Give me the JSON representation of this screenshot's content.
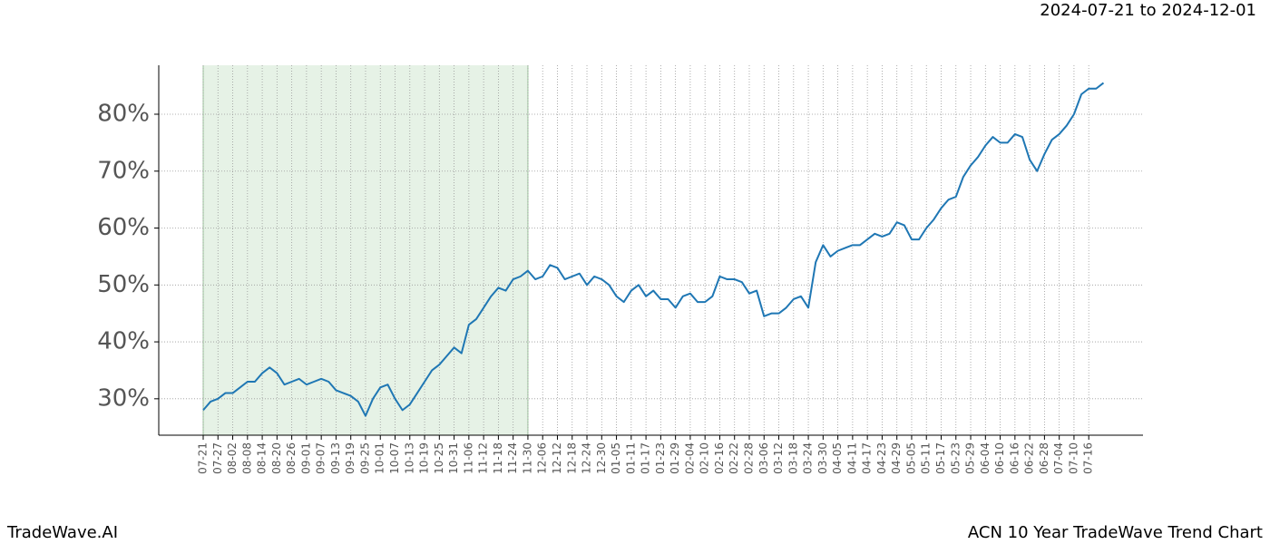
{
  "chart_data": {
    "type": "line",
    "title": "2024-07-21 to 2024-12-01",
    "footer_left": "TradeWave.AI",
    "footer_right": "ACN 10 Year TradeWave Trend Chart",
    "categories": [
      "07-21",
      null,
      "07-27",
      null,
      "08-02",
      null,
      "08-08",
      null,
      "08-14",
      null,
      "08-20",
      null,
      "08-26",
      null,
      "09-01",
      null,
      "09-07",
      null,
      "09-13",
      null,
      "09-19",
      null,
      "09-25",
      null,
      "10-01",
      null,
      "10-07",
      null,
      "10-13",
      null,
      "10-19",
      null,
      "10-25",
      null,
      "10-31",
      null,
      "11-06",
      null,
      "11-12",
      null,
      "11-18",
      null,
      "11-24",
      null,
      "11-30",
      null,
      "12-06",
      null,
      "12-12",
      null,
      "12-18",
      null,
      "12-24",
      null,
      "12-30",
      null,
      "01-05",
      null,
      "01-11",
      null,
      "01-17",
      null,
      "01-23",
      null,
      "01-29",
      null,
      "02-04",
      null,
      "02-10",
      null,
      "02-16",
      null,
      "02-22",
      null,
      "02-28",
      null,
      "03-06",
      null,
      "03-12",
      null,
      "03-18",
      null,
      "03-24",
      null,
      "03-30",
      null,
      "04-05",
      null,
      "04-11",
      null,
      "04-17",
      null,
      "04-23",
      null,
      "04-29",
      null,
      "05-05",
      null,
      "05-11",
      null,
      "05-17",
      null,
      "05-23",
      null,
      "05-29",
      null,
      "06-04",
      null,
      "06-10",
      null,
      "06-16",
      null,
      "06-22",
      null,
      "06-28",
      null,
      "07-04",
      null,
      "07-10",
      null,
      "07-16",
      null,
      null
    ],
    "series": [
      {
        "name": "ACN",
        "color": "#1f77b4",
        "values": [
          28,
          29.5,
          30,
          31,
          31,
          32,
          33,
          33,
          34.5,
          35.5,
          34.5,
          32.5,
          33,
          33.5,
          32.5,
          33,
          33.5,
          33,
          31.5,
          31,
          30.5,
          29.5,
          27,
          30,
          32,
          32.5,
          30,
          28,
          29,
          31,
          33,
          35,
          36,
          37.5,
          39,
          38,
          43,
          44,
          46,
          48,
          49.5,
          49,
          51,
          51.5,
          52.5,
          51,
          51.5,
          53.5,
          53,
          51,
          51.5,
          52,
          50,
          51.5,
          51,
          50,
          48,
          47,
          49,
          50,
          48,
          49,
          47.5,
          47.5,
          46,
          48,
          48.5,
          47,
          47,
          48,
          51.5,
          51,
          51,
          50.5,
          48.5,
          49,
          44.5,
          45,
          45,
          46,
          47.5,
          48,
          46,
          54,
          57,
          55,
          56,
          56.5,
          57,
          57,
          58,
          59,
          58.5,
          59,
          61,
          60.5,
          58,
          58,
          60,
          61.5,
          63.5,
          65,
          65.5,
          69,
          71,
          72.5,
          74.5,
          76,
          75,
          75,
          76.5,
          76,
          72,
          70,
          73,
          75.5,
          76.5,
          78,
          80,
          83.5,
          84.5,
          84.5,
          85.5
        ]
      }
    ],
    "highlight": {
      "start": "07-21",
      "end": "11-30",
      "color": "#e6f2e6"
    },
    "ylim": [
      23.6,
      88.6
    ],
    "yticks": [
      {
        "value": 30,
        "label": "30%"
      },
      {
        "value": 40,
        "label": "40%"
      },
      {
        "value": 50,
        "label": "50%"
      },
      {
        "value": 60,
        "label": "60%"
      },
      {
        "value": 70,
        "label": "70%"
      },
      {
        "value": 80,
        "label": "80%"
      }
    ],
    "grid": true
  }
}
